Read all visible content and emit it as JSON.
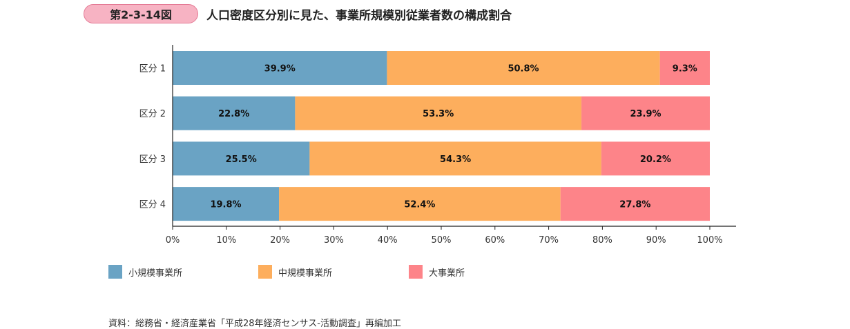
{
  "figure": {
    "number": "第2-3-14図",
    "title": "人口密度区分別に見た、事業所規模別従業者数の構成割合"
  },
  "chart_data": {
    "type": "bar",
    "orientation": "horizontal",
    "stacked": true,
    "categories": [
      "区分 1",
      "区分 2",
      "区分 3",
      "区分 4"
    ],
    "series": [
      {
        "name": "小規模事業所",
        "color": "#6aa3c4",
        "values": [
          39.9,
          22.8,
          25.5,
          19.8
        ]
      },
      {
        "name": "中規模事業所",
        "color": "#fdae5d",
        "values": [
          50.8,
          53.3,
          54.3,
          52.4
        ]
      },
      {
        "name": "大事業所",
        "color": "#fd8489",
        "values": [
          9.3,
          23.9,
          20.2,
          27.8
        ]
      }
    ],
    "xlim": [
      0,
      100
    ],
    "xticks": [
      "0%",
      "10%",
      "20%",
      "30%",
      "40%",
      "50%",
      "60%",
      "70%",
      "80%",
      "90%",
      "100%"
    ],
    "value_suffix": "%",
    "grid": false,
    "legend_position": "bottom-left"
  },
  "legend": {
    "items": [
      {
        "label": "小規模事業所",
        "color": "#6aa3c4"
      },
      {
        "label": "中規模事業所",
        "color": "#fdae5d"
      },
      {
        "label": "大事業所",
        "color": "#fd8489"
      }
    ]
  },
  "source": "資料：総務省・経済産業省「平成28年経済センサス-活動調査」再編加工"
}
